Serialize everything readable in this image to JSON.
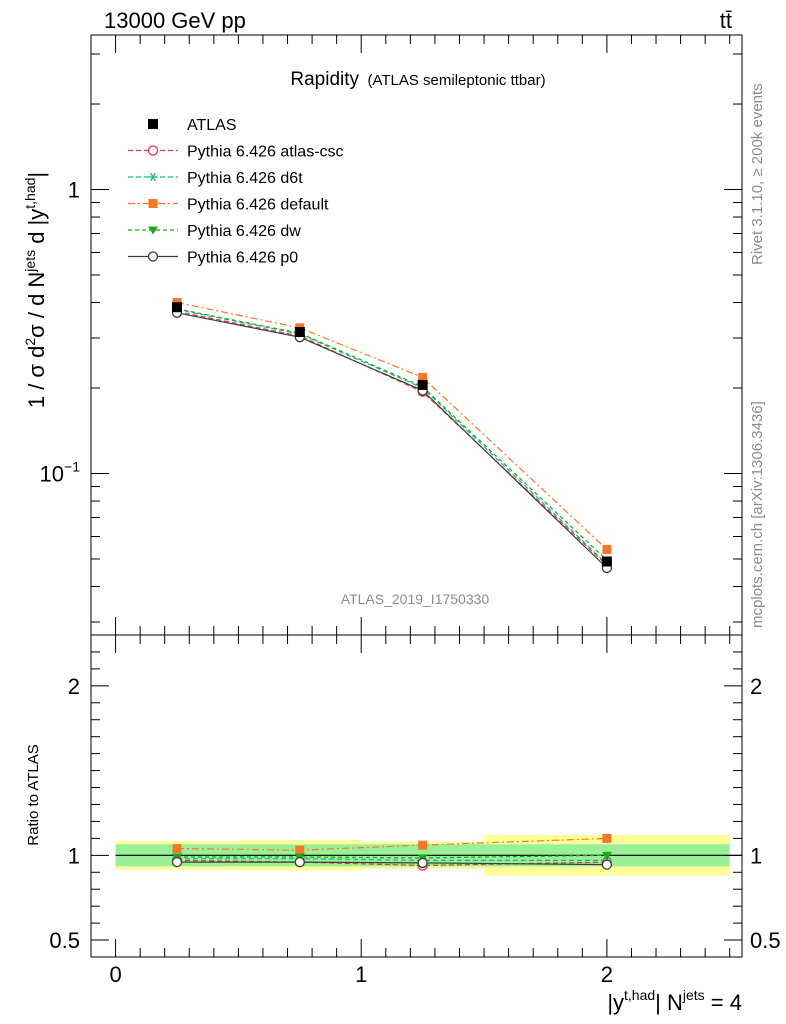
{
  "header": {
    "energy_label": "13000 GeV pp",
    "process_label": "tt̄"
  },
  "side_labels": {
    "rivet": "Rivet 3.1.10, ≥ 200k events",
    "mcplots": "mcplots.cern.ch [arXiv:1306.3436]"
  },
  "watermark": "ATLAS_2019_I1750330",
  "chart_data": {
    "type": "line",
    "title": "Rapidity",
    "subtitle": "(ATLAS semileptonic ttbar)",
    "xlabel": "|y^{t,had}| N^{jets} = 4",
    "ylabel": "1 / σ d²σ / d N^{jets} d |y^{t,had}|",
    "ratio_ylabel": "Ratio to ATLAS",
    "x": [
      0.25,
      0.75,
      1.25,
      2.0
    ],
    "bin_edges": [
      0.0,
      0.5,
      1.0,
      1.5,
      2.5
    ],
    "xlim": [
      -0.1,
      2.55
    ],
    "ylim": [
      0.027,
      3.5
    ],
    "yscale": "log",
    "ratio_ylim": [
      0.4,
      2.3
    ],
    "x_ticks": [
      "0",
      "1",
      "2"
    ],
    "y_ticks": [
      "1",
      "10^{−1}"
    ],
    "ratio_y_ticks": [
      "0.5",
      "1",
      "2"
    ],
    "data": {
      "name": "ATLAS",
      "values": [
        0.385,
        0.315,
        0.205,
        0.049
      ],
      "ratio_band_inner": [
        0.065,
        0.065,
        0.065,
        0.065
      ],
      "ratio_band_outer": [
        0.085,
        0.09,
        0.08,
        0.12
      ]
    },
    "series": [
      {
        "name": "Pythia 6.426 atlas-csc",
        "color": "#e8344b",
        "marker": "open-circle",
        "dash": "5,3",
        "values": [
          0.372,
          0.305,
          0.194,
          0.0475
        ],
        "ratio": [
          0.97,
          0.96,
          0.94,
          0.96
        ]
      },
      {
        "name": "Pythia 6.426 d6t",
        "color": "#18b888",
        "marker": "asterisk",
        "dash": "5,3",
        "values": [
          0.378,
          0.31,
          0.2,
          0.048
        ],
        "ratio": [
          0.98,
          0.98,
          0.97,
          0.97
        ]
      },
      {
        "name": "Pythia 6.426 default",
        "color": "#f5782a",
        "marker": "filled-square",
        "dash": "7,3,2,3",
        "values": [
          0.4,
          0.326,
          0.218,
          0.054
        ],
        "ratio": [
          1.04,
          1.03,
          1.06,
          1.1
        ]
      },
      {
        "name": "Pythia 6.426 dw",
        "color": "#1ea81e",
        "marker": "filled-triangle-down",
        "dash": "4,3",
        "values": [
          0.38,
          0.312,
          0.202,
          0.0495
        ],
        "ratio": [
          0.99,
          0.99,
          0.985,
          1.0
        ]
      },
      {
        "name": "Pythia 6.426 p0",
        "color": "#3c3c3c",
        "marker": "open-circle",
        "dash": "",
        "values": [
          0.368,
          0.302,
          0.196,
          0.0465
        ],
        "ratio": [
          0.96,
          0.96,
          0.955,
          0.945
        ]
      }
    ]
  }
}
